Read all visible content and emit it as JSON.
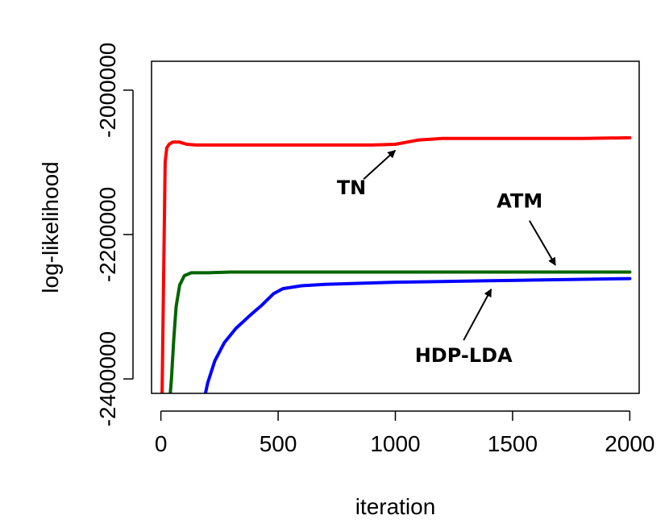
{
  "chart_data": {
    "type": "line",
    "title": "",
    "xlabel": "iteration",
    "ylabel": "log-likelihood",
    "xlim": [
      -40,
      2040
    ],
    "ylim": [
      -2420000,
      -1960000
    ],
    "xticks": [
      0,
      500,
      1000,
      1500,
      2000
    ],
    "xtick_labels": [
      "0",
      "500",
      "1000",
      "1500",
      "2000"
    ],
    "yticks": [
      -2400000,
      -2200000,
      -2000000
    ],
    "ytick_labels": [
      "-2400000",
      "-2200000",
      "-2000000"
    ],
    "grid": false,
    "series": [
      {
        "name": "TN",
        "color": "#ff0000",
        "x": [
          5,
          12,
          18,
          25,
          35,
          50,
          80,
          110,
          150,
          300,
          500,
          700,
          900,
          1000,
          1050,
          1100,
          1150,
          1200,
          1500,
          1800,
          2000
        ],
        "y": [
          -2420000,
          -2250000,
          -2100000,
          -2080000,
          -2075000,
          -2072000,
          -2072000,
          -2075000,
          -2076000,
          -2076000,
          -2076000,
          -2076000,
          -2076000,
          -2075000,
          -2072000,
          -2069000,
          -2068000,
          -2067000,
          -2067000,
          -2067000,
          -2066000
        ]
      },
      {
        "name": "ATM",
        "color": "#006400",
        "x": [
          40,
          45,
          55,
          65,
          80,
          100,
          130,
          200,
          300,
          500,
          1000,
          1500,
          2000
        ],
        "y": [
          -2420000,
          -2400000,
          -2345000,
          -2300000,
          -2270000,
          -2257000,
          -2253000,
          -2253000,
          -2252000,
          -2252000,
          -2252000,
          -2252000,
          -2252000
        ]
      },
      {
        "name": "HDP-LDA",
        "color": "#0000ff",
        "x": [
          190,
          200,
          230,
          270,
          320,
          380,
          430,
          480,
          520,
          600,
          700,
          800,
          900,
          1000,
          1200,
          1400,
          1600,
          1800,
          2000
        ],
        "y": [
          -2420000,
          -2405000,
          -2375000,
          -2350000,
          -2330000,
          -2312000,
          -2298000,
          -2282000,
          -2275000,
          -2271000,
          -2269000,
          -2268000,
          -2267000,
          -2266000,
          -2265000,
          -2264000,
          -2263000,
          -2262000,
          -2261000
        ]
      }
    ],
    "annotations": [
      {
        "text": "TN",
        "series": "TN",
        "arrow_to": [
          1025,
          -2076000
        ]
      },
      {
        "text": "ATM",
        "series": "ATM",
        "arrow_to": [
          1700,
          -2252000
        ]
      },
      {
        "text": "HDP-LDA",
        "series": "HDP-LDA",
        "arrow_to": [
          1425,
          -2266000
        ]
      }
    ]
  }
}
